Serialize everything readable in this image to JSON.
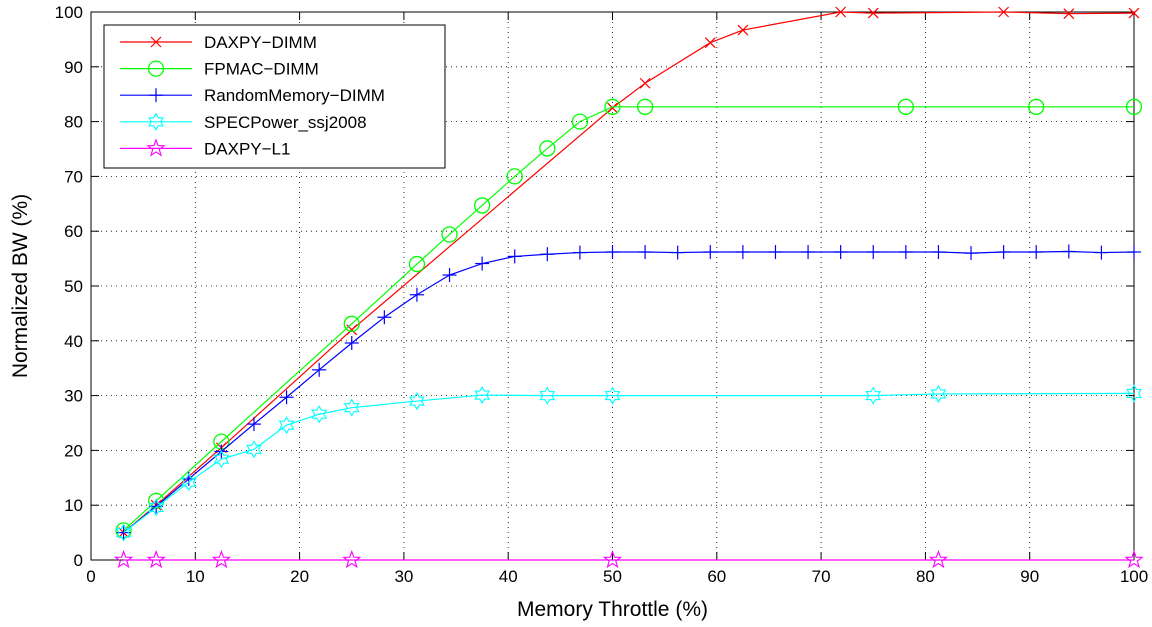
{
  "chart_data": {
    "type": "line",
    "title": "",
    "xlabel": "Memory Throttle (%)",
    "ylabel": "Normalized BW (%)",
    "xlim": [
      0,
      100
    ],
    "ylim": [
      0,
      100
    ],
    "xticks": [
      0,
      10,
      20,
      30,
      40,
      50,
      60,
      70,
      80,
      90,
      100
    ],
    "yticks": [
      0,
      10,
      20,
      30,
      40,
      50,
      60,
      70,
      80,
      90,
      100
    ],
    "grid": true,
    "legend_position": "top-left",
    "series": [
      {
        "name": "DAXPY−DIMM",
        "color": "#ff0000",
        "marker": "x",
        "x": [
          3.125,
          6.25,
          12.5,
          25,
          50,
          53.125,
          59.375,
          62.5,
          71.875,
          75,
          87.5,
          93.75,
          100
        ],
        "y": [
          5,
          10,
          20.5,
          42,
          82.5,
          87,
          94.4,
          96.7,
          100,
          99.8,
          100,
          99.7,
          99.8
        ]
      },
      {
        "name": "FPMAC−DIMM",
        "color": "#00ff00",
        "marker": "circle",
        "x": [
          3.125,
          6.25,
          12.5,
          25,
          31.25,
          34.375,
          37.5,
          40.625,
          43.75,
          46.875,
          50,
          53.125,
          78.125,
          90.625,
          100
        ],
        "y": [
          5.4,
          10.8,
          21.6,
          43.1,
          54,
          59.4,
          64.7,
          70,
          75.1,
          80,
          82.7,
          82.7,
          82.7,
          82.7,
          82.7
        ]
      },
      {
        "name": "RandomMemory−DIMM",
        "color": "#0000ff",
        "marker": "plus",
        "x": [
          3.125,
          6.25,
          9.375,
          12.5,
          15.625,
          18.75,
          21.875,
          25,
          28.125,
          31.25,
          34.375,
          37.5,
          40.625,
          43.75,
          46.875,
          50,
          53.125,
          56.25,
          59.375,
          62.5,
          65.625,
          68.75,
          71.875,
          75,
          78.125,
          81.25,
          84.375,
          87.5,
          90.625,
          93.75,
          96.875,
          100
        ],
        "y": [
          5,
          9.8,
          14.8,
          19.8,
          24.8,
          29.7,
          34.7,
          39.6,
          44.3,
          48.4,
          52,
          54.1,
          55.4,
          55.8,
          56.1,
          56.2,
          56.2,
          56.1,
          56.2,
          56.2,
          56.2,
          56.2,
          56.2,
          56.2,
          56.2,
          56.2,
          56,
          56.2,
          56.2,
          56.3,
          56.1,
          56.2
        ]
      },
      {
        "name": "SPECPower_ssj2008",
        "color": "#00ffff",
        "marker": "hexagram",
        "x": [
          3.125,
          6.25,
          9.375,
          12.5,
          15.625,
          18.75,
          21.875,
          25,
          31.25,
          37.5,
          43.75,
          50,
          75,
          81.25,
          100
        ],
        "y": [
          5,
          9.6,
          14.2,
          18.4,
          20.2,
          24.6,
          26.6,
          27.8,
          29,
          30.1,
          30,
          30,
          30,
          30.3,
          30.4
        ]
      },
      {
        "name": "DAXPY−L1",
        "color": "#ff00ff",
        "marker": "pentagram",
        "x": [
          3.125,
          6.25,
          12.5,
          25,
          50,
          81.25,
          100
        ],
        "y": [
          0,
          0,
          0,
          0,
          0,
          0,
          0
        ]
      }
    ]
  }
}
